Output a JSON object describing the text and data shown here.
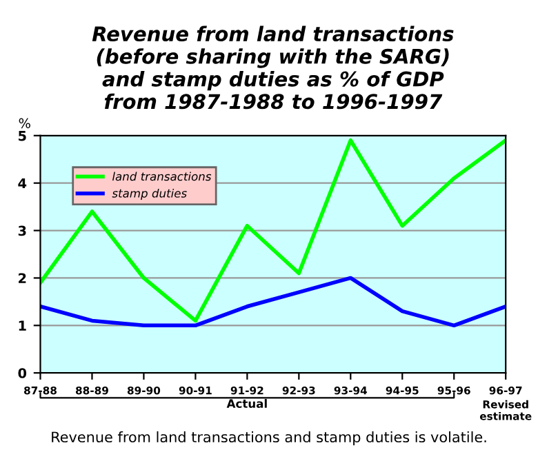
{
  "chart_data": {
    "type": "line",
    "title": "Revenue from land transactions\n(before sharing with the SARG)\nand stamp duties as % of GDP\nfrom 1987-1988 to 1996-1997",
    "ylabel": "%",
    "categories": [
      "87-88",
      "88-89",
      "89-90",
      "90-91",
      "91-92",
      "92-93",
      "93-94",
      "94-95",
      "95-96",
      "96-97"
    ],
    "series": [
      {
        "name": "land transactions",
        "color": "#00ff00",
        "values": [
          1.9,
          3.4,
          2.0,
          1.1,
          3.1,
          2.1,
          4.9,
          3.1,
          4.1,
          4.9
        ]
      },
      {
        "name": "stamp duties",
        "color": "#0000ff",
        "values": [
          1.4,
          1.1,
          1.0,
          1.0,
          1.4,
          1.7,
          2.0,
          1.3,
          1.0,
          1.4
        ]
      }
    ],
    "ylim": [
      0,
      5
    ],
    "yticks": [
      0,
      1,
      2,
      3,
      4,
      5
    ],
    "grid": "y",
    "legend": "top left",
    "annotations": [
      "Actual",
      "Revised estimate",
      "Revenue from land transactions and stamp duties is volatile."
    ]
  }
}
